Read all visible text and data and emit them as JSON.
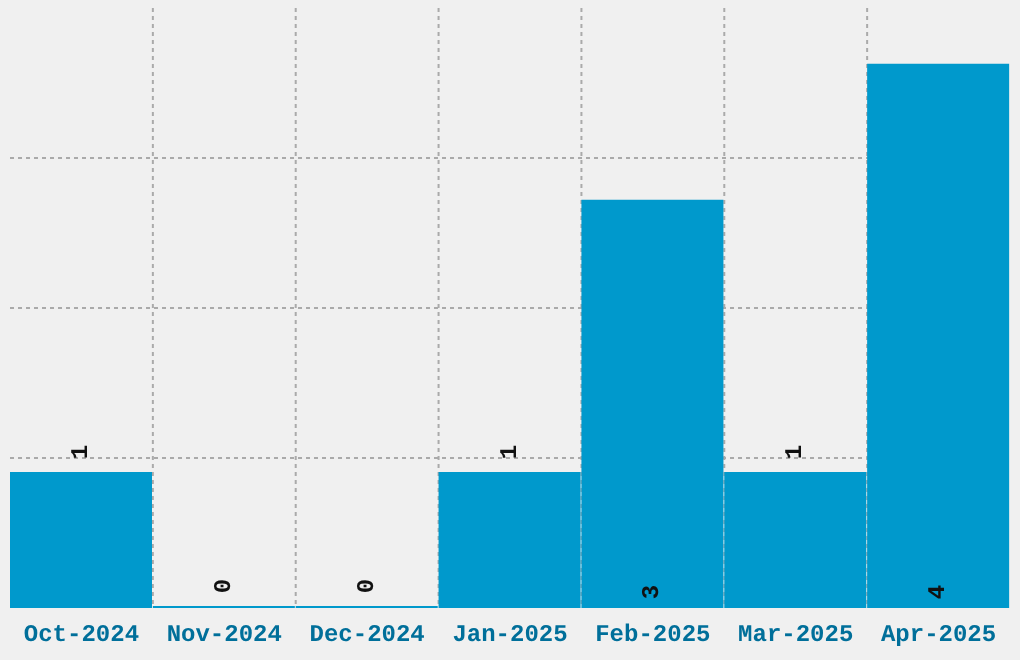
{
  "chart_data": {
    "type": "bar",
    "categories": [
      "Oct-2024",
      "Nov-2024",
      "Dec-2024",
      "Jan-2025",
      "Feb-2025",
      "Mar-2025",
      "Apr-2025"
    ],
    "values": [
      1,
      0,
      0,
      1,
      3,
      1,
      4
    ],
    "color": "#0099cc",
    "ylim": [
      0,
      4.41
    ],
    "tick_labels": "x",
    "grid": true,
    "data_labels": true
  }
}
